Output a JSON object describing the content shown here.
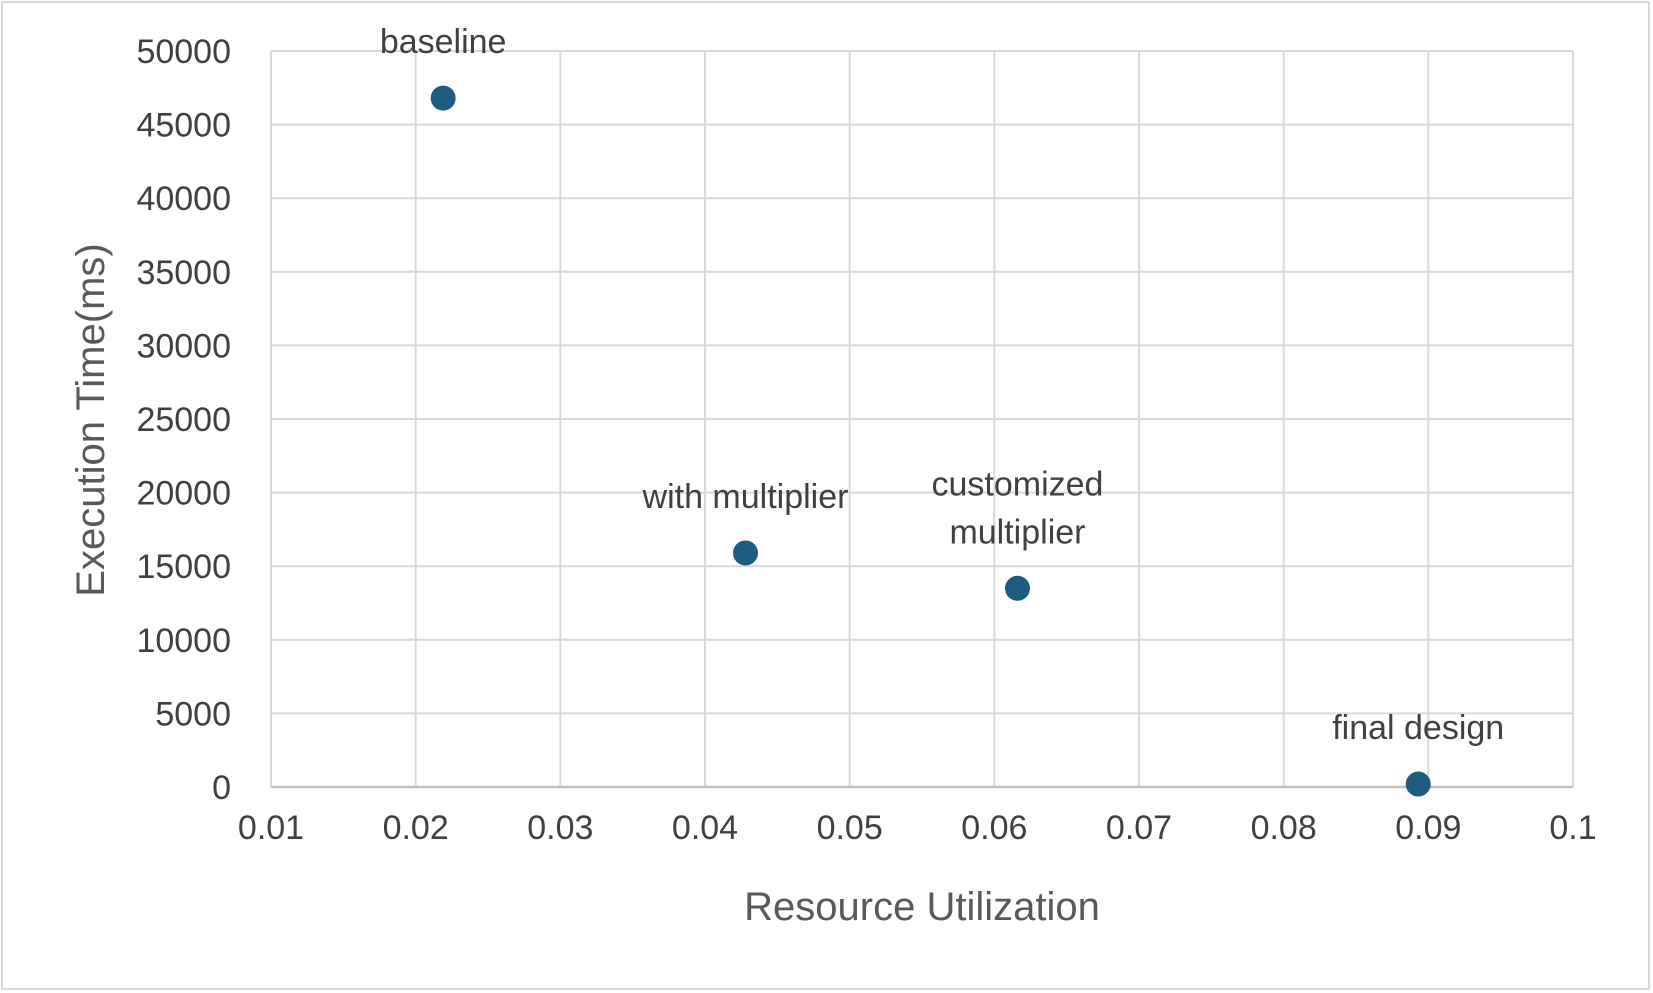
{
  "chart_data": {
    "type": "scatter",
    "title": "",
    "xlabel": "Resource Utilization",
    "ylabel": "Execution Time(ms)",
    "xlim": [
      0.01,
      0.1
    ],
    "ylim": [
      0,
      50000
    ],
    "x_ticks": [
      "0.01",
      "0.02",
      "0.03",
      "0.04",
      "0.05",
      "0.06",
      "0.07",
      "0.08",
      "0.09",
      "0.1"
    ],
    "y_ticks": [
      "0",
      "5000",
      "10000",
      "15000",
      "20000",
      "25000",
      "30000",
      "35000",
      "40000",
      "45000",
      "50000"
    ],
    "grid": true,
    "legend": "none",
    "marker_color": "#1f5d80",
    "points": [
      {
        "label": "baseline",
        "x": 0.0219,
        "y": 46800
      },
      {
        "label": "with multiplier",
        "x": 0.0428,
        "y": 15900
      },
      {
        "label": "customized multiplier",
        "label_lines": [
          "customized",
          "multiplier"
        ],
        "x": 0.0616,
        "y": 13500
      },
      {
        "label": "final design",
        "x": 0.0893,
        "y": 200
      }
    ]
  }
}
